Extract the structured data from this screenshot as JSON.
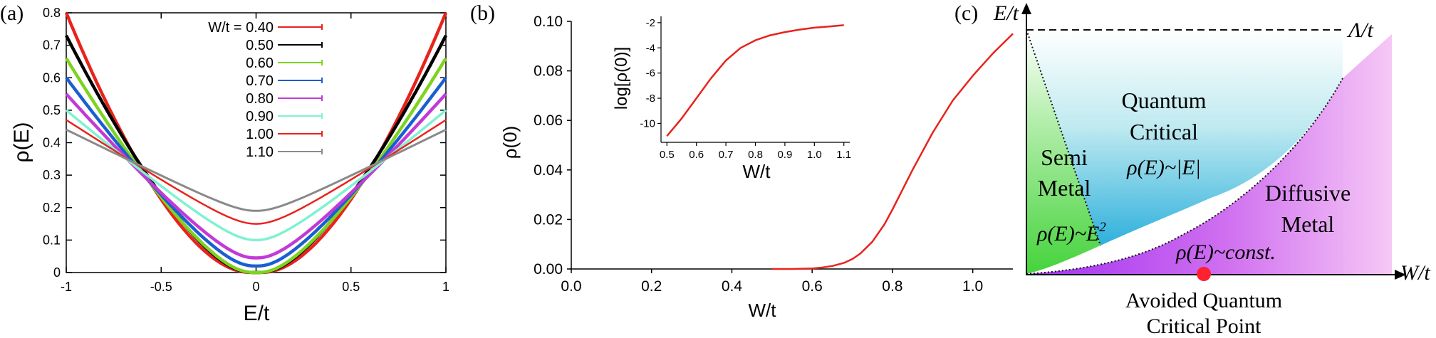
{
  "panels": {
    "a": {
      "label": "(a)",
      "xlabel": "E/t",
      "ylabel": "ρ(E)",
      "x_ticks": [
        "-1",
        "-0.5",
        "0",
        "0.5",
        "1"
      ],
      "y_ticks": [
        "0",
        "0.1",
        "0.2",
        "0.3",
        "0.4",
        "0.5",
        "0.6",
        "0.7",
        "0.8"
      ],
      "legend_title": "W/t = 0.40"
    },
    "b": {
      "label": "(b)",
      "xlabel": "W/t",
      "ylabel": "ρ(0)",
      "x_ticks": [
        "0.0",
        "0.2",
        "0.4",
        "0.6",
        "0.8",
        "1.0"
      ],
      "y_ticks": [
        "0.00",
        "0.02",
        "0.04",
        "0.06",
        "0.08",
        "0.10"
      ],
      "inset": {
        "xlabel": "W/t",
        "ylabel": "log[ρ(0)]",
        "x_ticks": [
          "0.5",
          "0.6",
          "0.7",
          "0.8",
          "0.9",
          "1.0",
          "1.1"
        ],
        "y_ticks": [
          "-2",
          "-4",
          "-6",
          "-8",
          "-10"
        ]
      }
    },
    "c": {
      "label": "(c)",
      "y_axis_label": "E/t",
      "x_axis_label": "W/t",
      "cutoff_label": "Λ/t",
      "region_semimetal": [
        "Semi",
        "Metal"
      ],
      "semimetal_dos_prefix": "ρ(E)~E",
      "semimetal_dos_exponent": "2",
      "region_qc": [
        "Quantum",
        "Critical"
      ],
      "qc_dos": "ρ(E)~|E|",
      "region_diffusive": [
        "Diffusive",
        "Metal"
      ],
      "diffusive_dos": "ρ(E)~const.",
      "point_label": [
        "Avoided Quantum",
        "Critical Point"
      ],
      "colors": {
        "semimetal": "#4fd64a",
        "qc_top": "#ffffff",
        "qc_bottom": "#2fb4de",
        "diffusive": "#b040f0",
        "point": "#ff2030"
      }
    }
  },
  "chart_data": [
    {
      "panel": "a",
      "type": "line",
      "xlabel": "E/t",
      "ylabel": "ρ(E)",
      "xlim": [
        -1,
        1
      ],
      "ylim": [
        0,
        0.8
      ],
      "grid": false,
      "legend_position": "top-right",
      "series": [
        {
          "name": "0.40",
          "color": "#e8231c",
          "rho0": 0.0,
          "rho_edge": 0.8,
          "curv": 2.8,
          "lw": 4.5
        },
        {
          "name": "0.50",
          "color": "#000000",
          "rho0": 0.0,
          "rho_edge": 0.73,
          "curv": 2.2,
          "lw": 4.5
        },
        {
          "name": "0.60",
          "color": "#7ed321",
          "rho0": 0.0,
          "rho_edge": 0.66,
          "curv": 1.9,
          "lw": 4.5
        },
        {
          "name": "0.70",
          "color": "#1a5fd1",
          "rho0": 0.02,
          "rho_edge": 0.6,
          "curv": 1.6,
          "lw": 4.5
        },
        {
          "name": "0.80",
          "color": "#c23ad6",
          "rho0": 0.045,
          "rho_edge": 0.55,
          "curv": 1.4,
          "lw": 4.5
        },
        {
          "name": "0.90",
          "color": "#7ff2d0",
          "rho0": 0.1,
          "rho_edge": 0.5,
          "curv": 1.2,
          "lw": 3.5
        },
        {
          "name": "1.00",
          "color": "#e8231c",
          "rho0": 0.15,
          "rho_edge": 0.47,
          "curv": 1.1,
          "lw": 2.5
        },
        {
          "name": "1.10",
          "color": "#8a8a8a",
          "rho0": 0.19,
          "rho_edge": 0.44,
          "curv": 1.0,
          "lw": 3
        }
      ]
    },
    {
      "panel": "b",
      "type": "line",
      "xlabel": "W/t",
      "ylabel": "ρ(0)",
      "xlim": [
        0,
        1.1
      ],
      "ylim": [
        0,
        0.1
      ],
      "series": [
        {
          "name": "",
          "color": "#e8231c",
          "x": [
            0.5,
            0.55,
            0.6,
            0.62,
            0.65,
            0.68,
            0.7,
            0.72,
            0.75,
            0.78,
            0.8,
            0.85,
            0.9,
            0.95,
            1.0,
            1.05,
            1.1
          ],
          "y": [
            0.0,
            0.0,
            0.0002,
            0.0005,
            0.0012,
            0.0025,
            0.004,
            0.0062,
            0.011,
            0.018,
            0.024,
            0.04,
            0.055,
            0.068,
            0.078,
            0.087,
            0.095
          ]
        }
      ]
    },
    {
      "panel": "b-inset",
      "type": "line",
      "xlabel": "W/t",
      "ylabel": "log[ρ(0)]",
      "xlim": [
        0.48,
        1.12
      ],
      "ylim": [
        -11.5,
        -1.5
      ],
      "series": [
        {
          "name": "",
          "color": "#e8231c",
          "x": [
            0.5,
            0.55,
            0.6,
            0.65,
            0.7,
            0.75,
            0.8,
            0.85,
            0.9,
            0.95,
            1.0,
            1.05,
            1.1
          ],
          "y": [
            -11.0,
            -9.6,
            -8.0,
            -6.4,
            -5.0,
            -4.0,
            -3.4,
            -3.0,
            -2.75,
            -2.55,
            -2.4,
            -2.3,
            -2.2
          ]
        }
      ]
    }
  ]
}
